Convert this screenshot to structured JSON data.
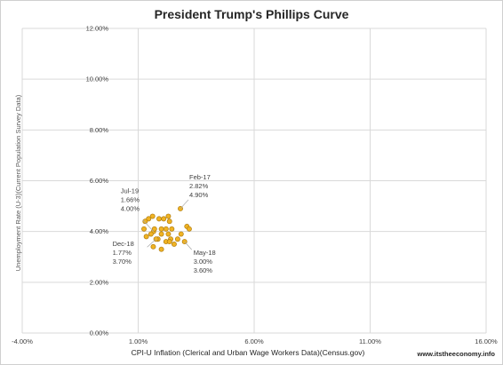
{
  "chart_data": {
    "type": "scatter",
    "title": "President Trump's Phillips Curve",
    "xlabel": "CPI-U Inflation (Clerical and Urban Wage Workers Data)(Census.gov)",
    "ylabel": "Unemployment Rate (U-3)(Current Population Survey Data)",
    "xlim": [
      -4,
      16
    ],
    "ylim": [
      0,
      12
    ],
    "x_ticks": [
      -4,
      1,
      6,
      11,
      16
    ],
    "x_tick_labels": [
      "-4.00%",
      "1.00%",
      "6.00%",
      "11.00%",
      "16.00%"
    ],
    "y_ticks": [
      0,
      2,
      4,
      6,
      8,
      10,
      12
    ],
    "y_tick_labels": [
      "0.00%",
      "2.00%",
      "4.00%",
      "6.00%",
      "8.00%",
      "10.00%",
      "12.00%"
    ],
    "grid": true,
    "marker_color": "#f0b323",
    "marker_edge_color": "#b07d12",
    "points": [
      {
        "x": 2.82,
        "y": 4.9
      },
      {
        "x": 2.3,
        "y": 4.6
      },
      {
        "x": 2.35,
        "y": 4.4
      },
      {
        "x": 2.1,
        "y": 4.5
      },
      {
        "x": 1.9,
        "y": 4.5
      },
      {
        "x": 1.62,
        "y": 4.6
      },
      {
        "x": 1.45,
        "y": 4.5
      },
      {
        "x": 1.3,
        "y": 4.4
      },
      {
        "x": 1.66,
        "y": 4.0
      },
      {
        "x": 1.7,
        "y": 4.1
      },
      {
        "x": 1.55,
        "y": 3.9
      },
      {
        "x": 1.25,
        "y": 4.1
      },
      {
        "x": 1.35,
        "y": 3.8
      },
      {
        "x": 2.0,
        "y": 4.1
      },
      {
        "x": 2.2,
        "y": 4.1
      },
      {
        "x": 2.45,
        "y": 4.1
      },
      {
        "x": 2.0,
        "y": 3.9
      },
      {
        "x": 2.3,
        "y": 3.9
      },
      {
        "x": 2.85,
        "y": 3.9
      },
      {
        "x": 3.1,
        "y": 4.2
      },
      {
        "x": 3.2,
        "y": 4.1
      },
      {
        "x": 1.85,
        "y": 3.7
      },
      {
        "x": 2.2,
        "y": 3.6
      },
      {
        "x": 2.4,
        "y": 3.7
      },
      {
        "x": 2.7,
        "y": 3.7
      },
      {
        "x": 1.77,
        "y": 3.7
      },
      {
        "x": 3.0,
        "y": 3.6
      },
      {
        "x": 1.65,
        "y": 3.4
      },
      {
        "x": 2.0,
        "y": 3.3
      },
      {
        "x": 2.55,
        "y": 3.5
      },
      {
        "x": 2.35,
        "y": 3.6
      }
    ],
    "annotations": [
      {
        "lines": [
          "Feb-17",
          "2.82%",
          "4.90%"
        ],
        "x": 2.82,
        "y": 4.9,
        "position": "upper-right"
      },
      {
        "lines": [
          "Jul-19",
          "1.66%",
          "4.00%"
        ],
        "x": 1.66,
        "y": 4.0,
        "position": "upper-left"
      },
      {
        "lines": [
          "Dec-18",
          "1.77%",
          "3.70%"
        ],
        "x": 1.77,
        "y": 3.7,
        "position": "lower-left"
      },
      {
        "lines": [
          "May-18",
          "3.00%",
          "3.60%"
        ],
        "x": 3.0,
        "y": 3.6,
        "position": "lower-right"
      }
    ]
  },
  "source_label": "www.itstheeconomy.info"
}
